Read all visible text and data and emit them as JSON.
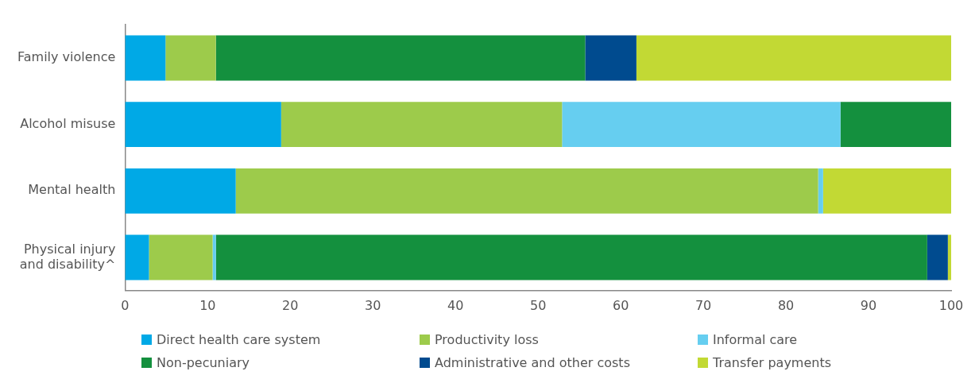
{
  "chart_data": {
    "type": "bar",
    "orientation": "horizontal",
    "stacked": true,
    "categories": [
      "Family violence",
      "Alcohol misuse",
      "Mental health",
      "Physical injury and disability^"
    ],
    "series": [
      {
        "name": "Direct health care system",
        "color": "#00a9e6",
        "values": [
          4.9,
          18.9,
          13.4,
          2.9
        ]
      },
      {
        "name": "Productivity loss",
        "color": "#9dcb4b",
        "values": [
          6.1,
          34.0,
          70.5,
          7.7
        ]
      },
      {
        "name": "Informal care",
        "color": "#66cef0",
        "values": [
          0,
          33.7,
          0.6,
          0.4
        ]
      },
      {
        "name": "Non-pecuniary",
        "color": "#14903e",
        "values": [
          44.7,
          13.4,
          0,
          86.1
        ]
      },
      {
        "name": "Administrative and other costs",
        "color": "#004b8f",
        "values": [
          6.2,
          0,
          0,
          2.5
        ]
      },
      {
        "name": "Transfer payments",
        "color": "#c2d934",
        "values": [
          38.1,
          0,
          15.5,
          0.4
        ]
      }
    ],
    "xlim": [
      0,
      100
    ],
    "xticks": [
      0,
      10,
      20,
      30,
      40,
      50,
      60,
      70,
      80,
      90,
      100
    ],
    "grid": false,
    "legend": "bottom"
  }
}
